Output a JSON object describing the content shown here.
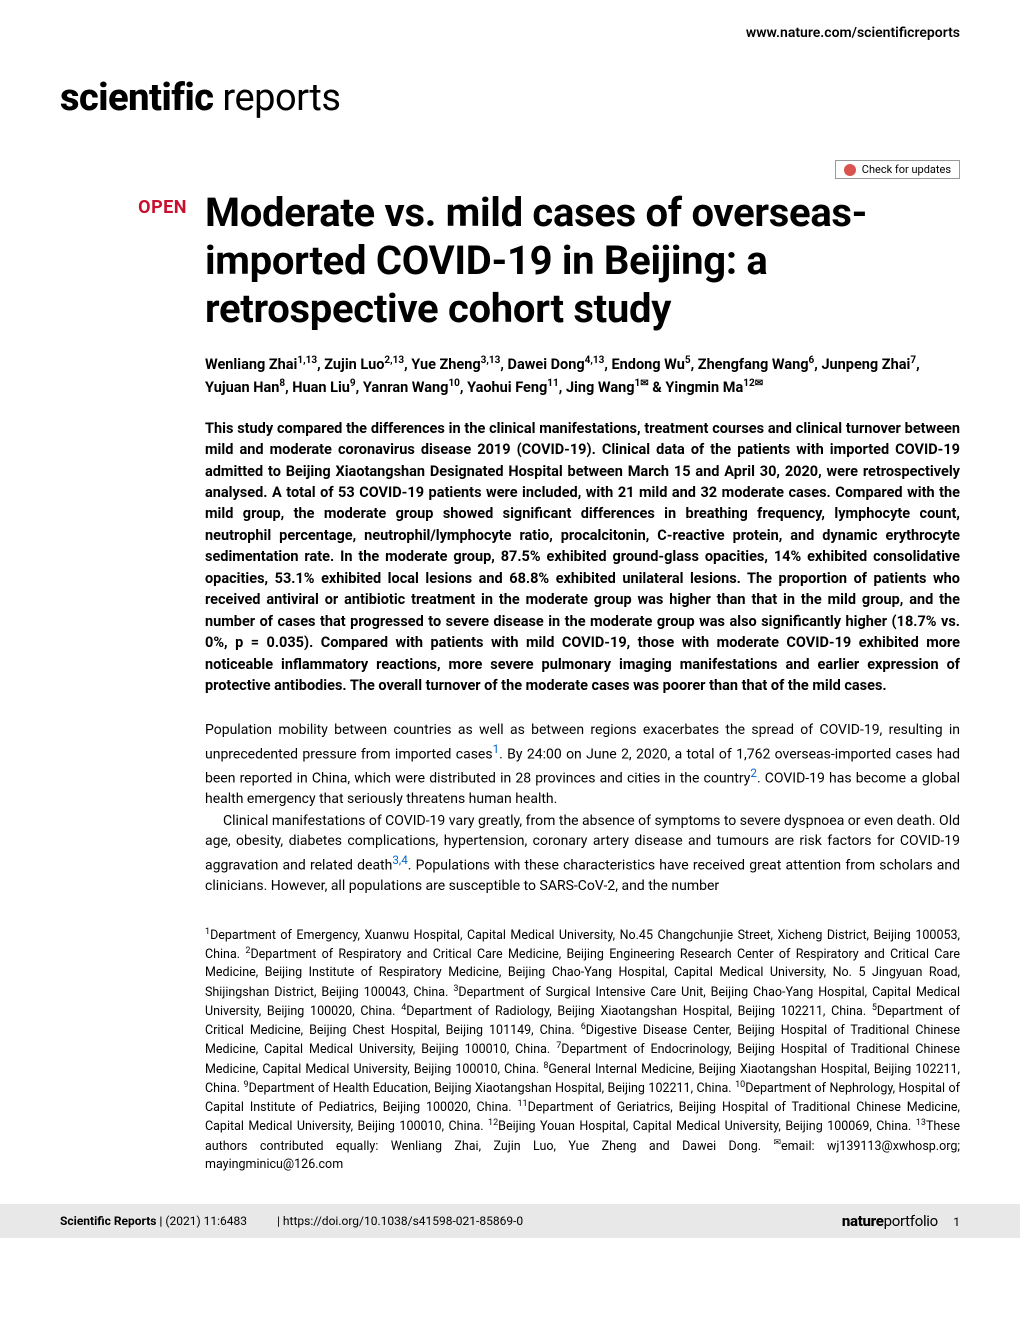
{
  "header": {
    "site_url": "www.nature.com/scientificreports"
  },
  "journal": {
    "logo_bold": "scientific",
    "logo_light": " reports"
  },
  "check_updates_label": "Check for updates",
  "badges": {
    "open": "OPEN"
  },
  "article": {
    "title": "Moderate vs. mild cases of overseas-imported COVID-19 in Beijing: a retrospective cohort study",
    "authors_html": "Wenliang Zhai<sup>1,13</sup>, Zujin Luo<sup>2,13</sup>, Yue Zheng<sup>3,13</sup>, Dawei Dong<sup>4,13</sup>, Endong Wu<sup>5</sup>, Zhengfang Wang<sup>6</sup>, Junpeng Zhai<sup>7</sup>, Yujuan Han<sup>8</sup>, Huan Liu<sup>9</sup>, Yanran Wang<sup>10</sup>, Yaohui Feng<sup>11</sup>, Jing Wang<sup>1✉</sup> & Yingmin Ma<sup>12✉</sup>",
    "abstract": "This study compared the differences in the clinical manifestations, treatment courses and clinical turnover between mild and moderate coronavirus disease 2019 (COVID-19). Clinical data of the patients with imported COVID-19 admitted to Beijing Xiaotangshan Designated Hospital between March 15 and April 30, 2020, were retrospectively analysed. A total of 53 COVID-19 patients were included, with 21 mild and 32 moderate cases. Compared with the mild group, the moderate group showed significant differences in breathing frequency, lymphocyte count, neutrophil percentage, neutrophil/lymphocyte ratio, procalcitonin, C-reactive protein, and dynamic erythrocyte sedimentation rate. In the moderate group, 87.5% exhibited ground-glass opacities, 14% exhibited consolidative opacities, 53.1% exhibited local lesions and 68.8% exhibited unilateral lesions. The proportion of patients who received antiviral or antibiotic treatment in the moderate group was higher than that in the mild group, and the number of cases that progressed to severe disease in the moderate group was also significantly higher (18.7% vs. 0%, p = 0.035). Compared with patients with mild COVID-19, those with moderate COVID-19 exhibited more noticeable inflammatory reactions, more severe pulmonary imaging manifestations and earlier expression of protective antibodies. The overall turnover of the moderate cases was poorer than that of the mild cases.",
    "body_p1_a": "Population mobility between countries as well as between regions exacerbates the spread of COVID-19, resulting in unprecedented pressure from imported cases",
    "ref1": "1",
    "body_p1_b": ". By 24:00 on June 2, 2020, a total of 1,762 overseas-imported cases had been reported in China, which were distributed in 28 provinces and cities in the country",
    "ref2": "2",
    "body_p1_c": ". COVID-19 has become a global health emergency that seriously threatens human health.",
    "body_p2_a": "Clinical manifestations of COVID-19 vary greatly, from the absence of symptoms to severe dyspnoea or even death. Old age, obesity, diabetes complications, hypertension, coronary artery disease and tumours are risk factors for COVID-19 aggravation and related death",
    "ref34": "3,4",
    "body_p2_b": ". Populations with these characteristics have received great attention from scholars and clinicians. However, all populations are susceptible to SARS-CoV-2, and the number",
    "affiliations_html": "<sup>1</sup>Department of Emergency, Xuanwu Hospital, Capital Medical University, No.45 Changchunjie Street, Xicheng District, Beijing 100053, China. <sup>2</sup>Department of Respiratory and Critical Care Medicine, Beijing Engineering Research Center of Respiratory and Critical Care Medicine, Beijing Institute of Respiratory Medicine, Beijing Chao-Yang Hospital, Capital Medical University, No. 5 Jingyuan Road, Shijingshan District, Beijing 100043, China. <sup>3</sup>Department of Surgical Intensive Care Unit, Beijing Chao-Yang Hospital, Capital Medical University, Beijing 100020, China. <sup>4</sup>Department of Radiology, Beijing Xiaotangshan Hospital, Beijing 102211, China. <sup>5</sup>Department of Critical Medicine, Beijing Chest Hospital, Beijing 101149, China. <sup>6</sup>Digestive Disease Center, Beijing Hospital of Traditional Chinese Medicine, Capital Medical University, Beijing 100010, China. <sup>7</sup>Department of Endocrinology, Beijing Hospital of Traditional Chinese Medicine, Capital Medical University, Beijing 100010, China. <sup>8</sup>General Internal Medicine, Beijing Xiaotangshan Hospital, Beijing 102211, China. <sup>9</sup>Department of Health Education, Beijing Xiaotangshan Hospital, Beijing 102211, China. <sup>10</sup>Department of Nephrology, Hospital of Capital Institute of Pediatrics, Beijing 100020, China. <sup>11</sup>Department of Geriatrics, Beijing Hospital of Traditional Chinese Medicine, Capital Medical University, Beijing 100010, China. <sup>12</sup>Beijing Youan Hospital, Capital Medical University, Beijing 100069, China. <sup>13</sup>These authors contributed equally: Wenliang Zhai, Zujin Luo, Yue Zheng and Dawei Dong. <sup>✉</sup>email: wj139113@xwhosp.org; mayingminicu@126.com"
  },
  "footer": {
    "journal": "Scientific Reports |",
    "citation": "(2021) 11:6483",
    "doi": "| https://doi.org/10.1038/s41598-021-85869-0",
    "portfolio_bold": "nature",
    "portfolio_light": "portfolio",
    "page": "1"
  },
  "colors": {
    "open_badge": "#c8102e",
    "ref_link": "#0066cc",
    "footer_bg": "#e8e8e8",
    "text": "#000000"
  },
  "typography": {
    "title_fontsize": 40,
    "logo_fontsize": 38,
    "authors_fontsize": 14.5,
    "abstract_fontsize": 14.5,
    "body_fontsize": 14,
    "affiliations_fontsize": 12.5,
    "footer_fontsize": 12
  }
}
